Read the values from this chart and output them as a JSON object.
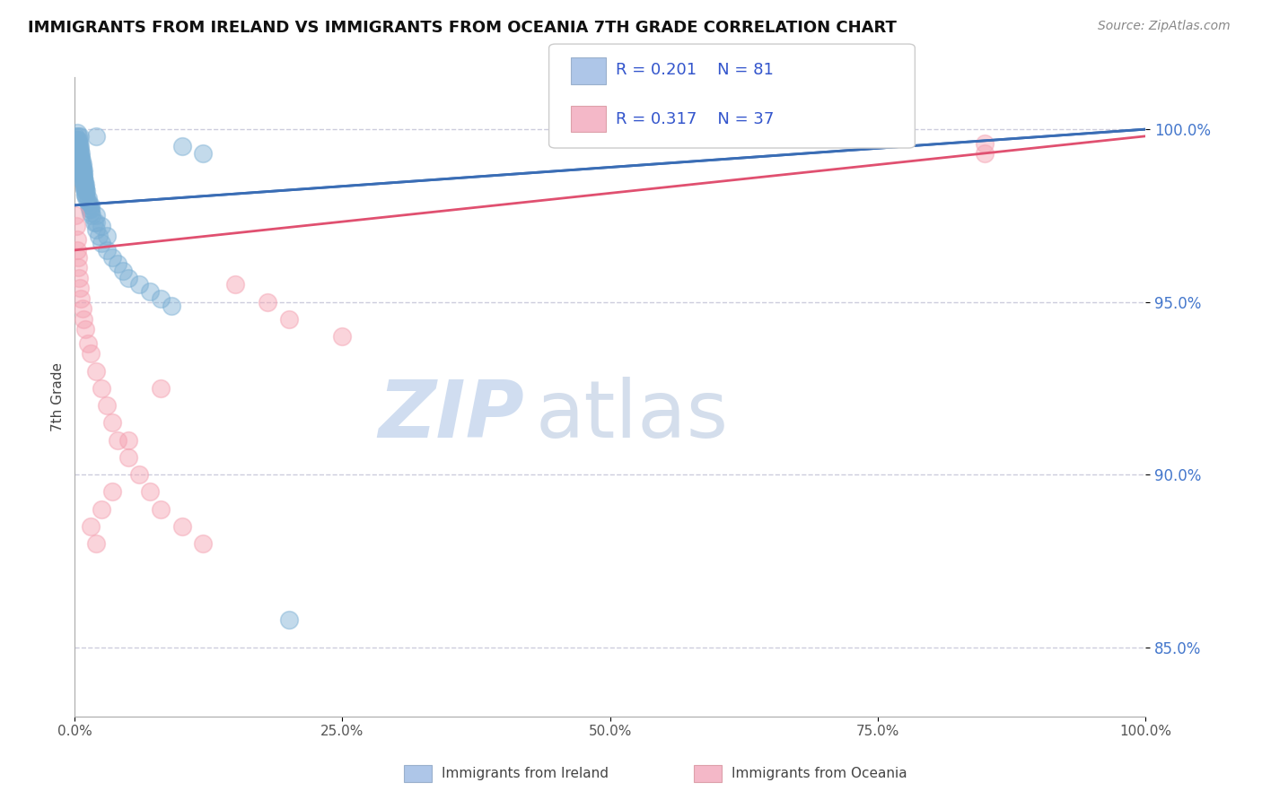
{
  "title": "IMMIGRANTS FROM IRELAND VS IMMIGRANTS FROM OCEANIA 7TH GRADE CORRELATION CHART",
  "source": "Source: ZipAtlas.com",
  "ylabel": "7th Grade",
  "xlim": [
    0.0,
    100.0
  ],
  "ylim": [
    83.0,
    101.5
  ],
  "y_ticks": [
    85.0,
    90.0,
    95.0,
    100.0
  ],
  "y_tick_labels": [
    "85.0%",
    "90.0%",
    "95.0%",
    "100.0%"
  ],
  "x_ticks": [
    0,
    25,
    50,
    75,
    100
  ],
  "x_tick_labels": [
    "0.0%",
    "25.0%",
    "50.0%",
    "75.0%",
    "100.0%"
  ],
  "ireland_color": "#7bafd4",
  "oceania_color": "#f4a0b0",
  "ireland_line_color": "#3a6db5",
  "oceania_line_color": "#e05070",
  "background_color": "#ffffff",
  "grid_color": "#ccccdd",
  "watermark_text": "ZIP",
  "watermark_text2": "atlas",
  "legend_r1": "R = 0.201",
  "legend_n1": "N = 81",
  "legend_r2": "R = 0.317",
  "legend_n2": "N = 37",
  "legend_color1": "#aec6e8",
  "legend_color2": "#f4b8c8",
  "bottom_label1": "Immigrants from Ireland",
  "bottom_label2": "Immigrants from Oceania",
  "ireland_x": [
    0.1,
    0.15,
    0.2,
    0.25,
    0.3,
    0.3,
    0.35,
    0.35,
    0.4,
    0.4,
    0.45,
    0.45,
    0.5,
    0.5,
    0.5,
    0.55,
    0.55,
    0.6,
    0.6,
    0.65,
    0.65,
    0.7,
    0.7,
    0.7,
    0.75,
    0.8,
    0.8,
    0.85,
    0.9,
    0.9,
    0.95,
    1.0,
    1.0,
    1.1,
    1.1,
    1.2,
    1.3,
    1.4,
    1.5,
    1.6,
    1.8,
    2.0,
    2.2,
    2.5,
    3.0,
    3.5,
    4.0,
    4.5,
    5.0,
    6.0,
    7.0,
    8.0,
    9.0,
    10.0,
    12.0,
    0.3,
    0.4,
    0.5,
    0.6,
    0.7,
    0.8,
    0.9,
    1.0,
    1.2,
    1.5,
    2.0,
    2.5,
    3.0,
    0.2,
    0.3,
    0.4,
    0.5,
    0.6,
    0.7,
    0.8,
    0.9,
    1.0,
    1.5,
    2.0,
    2.0,
    20.0
  ],
  "ireland_y": [
    99.8,
    99.7,
    99.9,
    99.6,
    99.8,
    99.5,
    99.7,
    99.4,
    99.6,
    99.3,
    99.5,
    99.2,
    99.4,
    99.1,
    99.8,
    99.3,
    99.0,
    99.2,
    98.9,
    99.1,
    98.8,
    99.0,
    98.7,
    98.5,
    98.9,
    98.8,
    98.6,
    98.7,
    98.5,
    98.3,
    98.4,
    98.3,
    98.1,
    98.2,
    98.0,
    97.9,
    97.8,
    97.7,
    97.6,
    97.5,
    97.3,
    97.1,
    96.9,
    96.7,
    96.5,
    96.3,
    96.1,
    95.9,
    95.7,
    95.5,
    95.3,
    95.1,
    94.9,
    99.5,
    99.3,
    99.6,
    99.4,
    99.2,
    99.0,
    98.8,
    98.6,
    98.4,
    98.2,
    98.0,
    97.8,
    97.5,
    97.2,
    96.9,
    99.7,
    99.5,
    99.3,
    99.1,
    98.9,
    98.7,
    98.5,
    98.3,
    98.1,
    97.7,
    97.3,
    99.8,
    85.8
  ],
  "oceania_x": [
    0.1,
    0.15,
    0.2,
    0.25,
    0.3,
    0.35,
    0.4,
    0.5,
    0.6,
    0.7,
    0.8,
    1.0,
    1.2,
    1.5,
    2.0,
    2.5,
    3.0,
    3.5,
    4.0,
    5.0,
    6.0,
    7.0,
    8.0,
    10.0,
    12.0,
    15.0,
    18.0,
    20.0,
    25.0,
    1.5,
    2.0,
    2.5,
    3.5,
    5.0,
    8.0,
    85.0,
    85.0
  ],
  "oceania_y": [
    97.5,
    97.2,
    96.8,
    96.5,
    96.3,
    96.0,
    95.7,
    95.4,
    95.1,
    94.8,
    94.5,
    94.2,
    93.8,
    93.5,
    93.0,
    92.5,
    92.0,
    91.5,
    91.0,
    90.5,
    90.0,
    89.5,
    89.0,
    88.5,
    88.0,
    95.5,
    95.0,
    94.5,
    94.0,
    88.5,
    88.0,
    89.0,
    89.5,
    91.0,
    92.5,
    99.6,
    99.3
  ]
}
